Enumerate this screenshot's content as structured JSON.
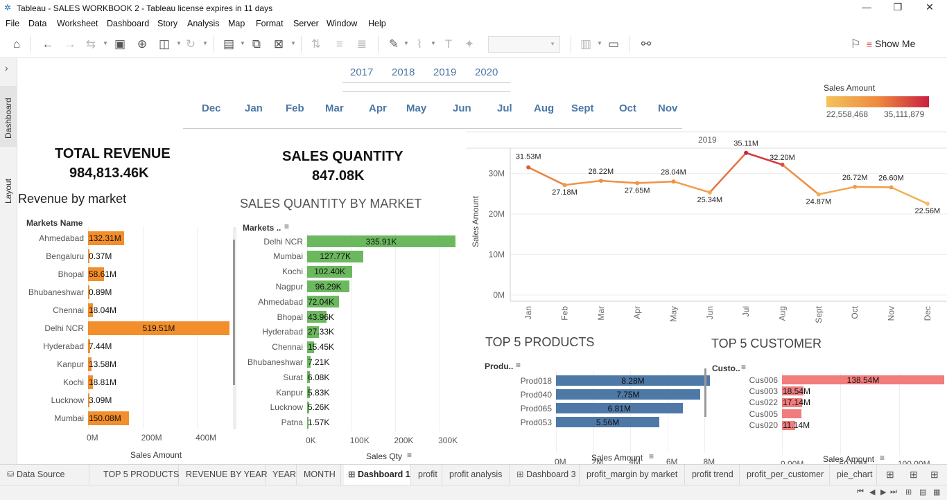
{
  "window": {
    "title": "Tableau - SALES WORKBOOK 2 - Tableau license expires in 11 days"
  },
  "menu": [
    "File",
    "Data",
    "Worksheet",
    "Dashboard",
    "Story",
    "Analysis",
    "Map",
    "Format",
    "Server",
    "Window",
    "Help"
  ],
  "toolbar": {
    "show_me": "Show Me"
  },
  "sidebar": {
    "dashboard_tab": "Dashboard",
    "layout_tab": "Layout"
  },
  "filters": {
    "years": [
      "2017",
      "2018",
      "2019",
      "2020"
    ],
    "months": [
      "Dec",
      "Jan",
      "Feb",
      "Mar",
      "Apr",
      "May",
      "Jun",
      "Jul",
      "Aug",
      "Sept",
      "Oct",
      "Nov"
    ]
  },
  "legend": {
    "title": "Sales Amount",
    "min": "22,558,468",
    "max": "35,111,879",
    "color_low": "#f3c25a",
    "color_high": "#c9213f"
  },
  "kpi": {
    "revenue_label": "TOTAL REVENUE",
    "revenue_value": "984,813.46K",
    "qty_label": "SALES QUANTITY",
    "qty_value": "847.08K"
  },
  "revenue_by_market": {
    "title": "Revenue by market",
    "header": "Markets Name",
    "xlabel": "Sales Amount",
    "ticks": [
      "0M",
      "200M",
      "400M"
    ],
    "rows": [
      {
        "name": "Ahmedabad",
        "label": "132.31M",
        "value": 132.31
      },
      {
        "name": "Bengaluru",
        "label": "0.37M",
        "value": 0.37
      },
      {
        "name": "Bhopal",
        "label": "58.61M",
        "value": 58.61
      },
      {
        "name": "Bhubaneshwar",
        "label": "0.89M",
        "value": 0.89
      },
      {
        "name": "Chennai",
        "label": "18.04M",
        "value": 18.04
      },
      {
        "name": "Delhi NCR",
        "label": "519.51M",
        "value": 519.51
      },
      {
        "name": "Hyderabad",
        "label": "7.44M",
        "value": 7.44
      },
      {
        "name": "Kanpur",
        "label": "13.58M",
        "value": 13.58
      },
      {
        "name": "Kochi",
        "label": "18.81M",
        "value": 18.81
      },
      {
        "name": "Lucknow",
        "label": "3.09M",
        "value": 3.09
      },
      {
        "name": "Mumbai",
        "label": "150.08M",
        "value": 150.08
      }
    ],
    "color": "#f28e2b"
  },
  "qty_by_market": {
    "title": "SALES QUANTITY BY MARKET",
    "header": "Markets ..",
    "xlabel": "Sales Qty",
    "ticks": [
      "0K",
      "100K",
      "200K",
      "300K"
    ],
    "rows": [
      {
        "name": "Delhi NCR",
        "label": "335.91K",
        "value": 335.91
      },
      {
        "name": "Mumbai",
        "label": "127.77K",
        "value": 127.77
      },
      {
        "name": "Kochi",
        "label": "102.40K",
        "value": 102.4
      },
      {
        "name": "Nagpur",
        "label": "96.29K",
        "value": 96.29
      },
      {
        "name": "Ahmedabad",
        "label": "72.04K",
        "value": 72.04
      },
      {
        "name": "Bhopal",
        "label": "43.96K",
        "value": 43.96
      },
      {
        "name": "Hyderabad",
        "label": "27.33K",
        "value": 27.33
      },
      {
        "name": "Chennai",
        "label": "15.45K",
        "value": 15.45
      },
      {
        "name": "Bhubaneshwar",
        "label": "7.21K",
        "value": 7.21
      },
      {
        "name": "Surat",
        "label": "6.08K",
        "value": 6.08
      },
      {
        "name": "Kanpur",
        "label": "5.83K",
        "value": 5.83
      },
      {
        "name": "Lucknow",
        "label": "5.26K",
        "value": 5.26
      },
      {
        "name": "Patna",
        "label": "1.57K",
        "value": 1.57
      }
    ],
    "color": "#6cb85f"
  },
  "chart_data": {
    "type": "line",
    "title": "2019",
    "ylabel": "Sales Amount",
    "yticks": [
      "0M",
      "10M",
      "20M",
      "30M"
    ],
    "ylim": [
      0,
      37
    ],
    "x": [
      "Jan",
      "Feb",
      "Mar",
      "Apr",
      "May",
      "Jun",
      "Jul",
      "Aug",
      "Sept",
      "Oct",
      "Nov",
      "Dec"
    ],
    "values": [
      31.53,
      27.18,
      28.22,
      27.65,
      28.04,
      25.34,
      35.11,
      32.2,
      24.87,
      26.72,
      26.6,
      22.56
    ],
    "labels": [
      "31.53M",
      "27.18M",
      "28.22M",
      "27.65M",
      "28.04M",
      "25.34M",
      "35.11M",
      "32.20M",
      "24.87M",
      "26.72M",
      "26.60M",
      "22.56M"
    ]
  },
  "top_products": {
    "title": "TOP 5 PRODUCTS",
    "header": "Produ..",
    "xlabel": "Sales Amount",
    "ticks": [
      "0M",
      "2M",
      "4M",
      "6M",
      "8M"
    ],
    "rows": [
      {
        "name": "Prod018",
        "label": "8.28M",
        "value": 8.28
      },
      {
        "name": "Prod040",
        "label": "7.75M",
        "value": 7.75
      },
      {
        "name": "Prod065",
        "label": "6.81M",
        "value": 6.81
      },
      {
        "name": "Prod053",
        "label": "5.56M",
        "value": 5.56
      }
    ],
    "color": "#4e79a7"
  },
  "top_customers": {
    "title": "TOP 5 CUSTOMER",
    "header": "Custo..",
    "xlabel": "Sales Amount",
    "ticks": [
      "0.00M",
      "50.00M",
      "100.00M"
    ],
    "rows": [
      {
        "name": "Cus006",
        "label": "138.54M",
        "value": 138.54
      },
      {
        "name": "Cus003",
        "label": "18.54M",
        "value": 18.54
      },
      {
        "name": "Cus022",
        "label": "17.14M",
        "value": 17.14
      },
      {
        "name": "Cus005",
        "label": "",
        "value": 16.5
      },
      {
        "name": "Cus020",
        "label": "11.14M",
        "value": 11.14
      }
    ],
    "color": "#f07c7c"
  },
  "tabs": [
    "Data Source",
    "TOP 5 PRODUCTS",
    "REVENUE BY YEAR",
    "YEAR",
    "MONTH",
    "Dashboard 1",
    "profit",
    "profit analysis",
    "Dashboard 3",
    "profit_margin by market",
    "profit trend",
    "profit_per_customer",
    "pie_chart"
  ]
}
